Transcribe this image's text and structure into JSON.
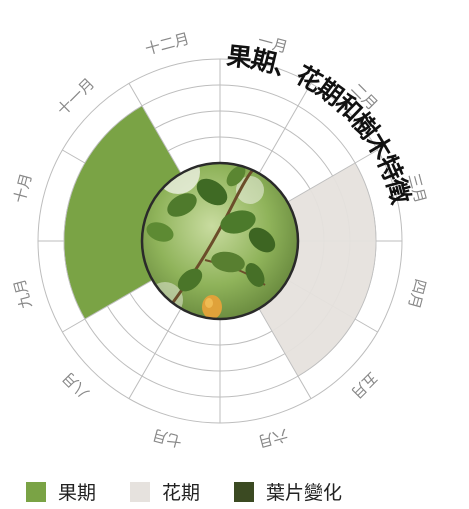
{
  "chart_data": {
    "type": "radial-calendar",
    "title": "果期、花期和樹木特徵",
    "months": [
      "一月",
      "二月",
      "三月",
      "四月",
      "五月",
      "六月",
      "七月",
      "八月",
      "九月",
      "十月",
      "十一月",
      "十二月"
    ],
    "series": [
      {
        "name": "果期",
        "color": "#7aa345",
        "start_month": 9,
        "end_month": 11
      },
      {
        "name": "花期",
        "color": "#e6e2de",
        "start_month": 3,
        "end_month": 5
      },
      {
        "name": "葉片變化",
        "color": "#3b4a22",
        "start_month": null,
        "end_month": null
      }
    ],
    "center_image": "leaf-photo"
  },
  "colors": {
    "grid": "#bdbdbd",
    "month_label": "#888888",
    "title": "#111111",
    "ring_border": "#2a2a2a"
  }
}
